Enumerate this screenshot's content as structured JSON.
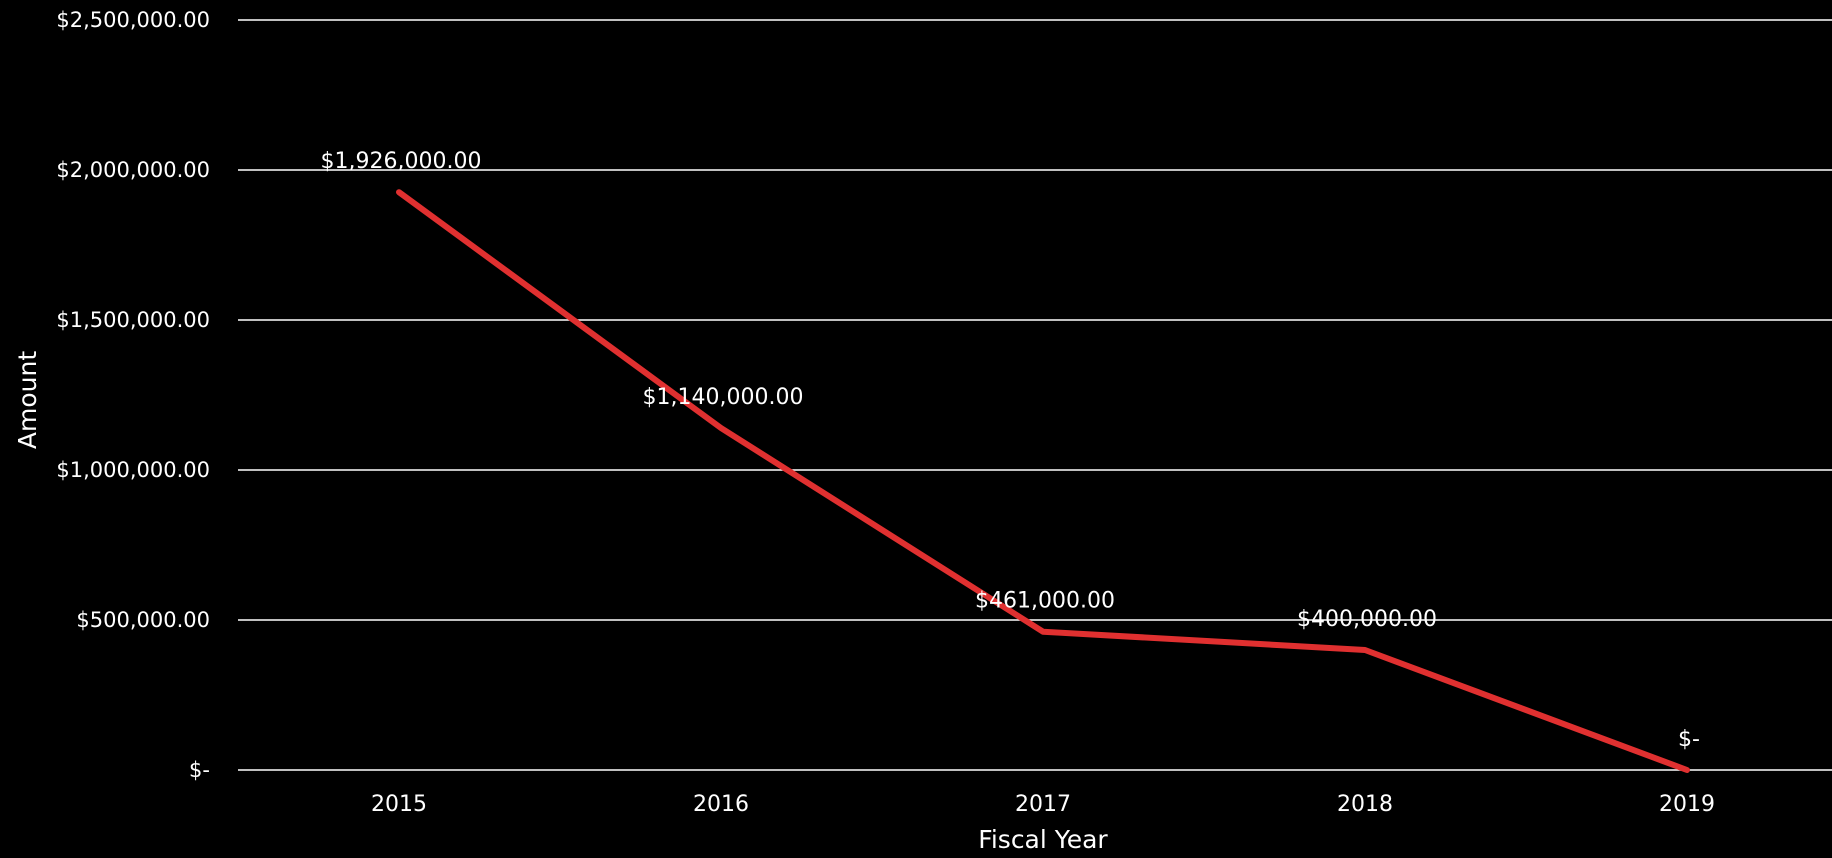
{
  "chart_data": {
    "type": "line",
    "x": [
      "2015",
      "2016",
      "2017",
      "2018",
      "2019"
    ],
    "series": [
      {
        "values": [
          1926000,
          1140000,
          461000,
          400000,
          0
        ],
        "labels": [
          "$1,926,000.00",
          "$1,140,000.00",
          "$461,000.00",
          "$400,000.00",
          "$-"
        ]
      }
    ],
    "xlabel": "Fiscal Year",
    "ylabel": "Amount",
    "ylim": [
      0,
      2500000
    ],
    "y_ticks": [
      {
        "value": 0,
        "label": "$-"
      },
      {
        "value": 500000,
        "label": "$500,000.00"
      },
      {
        "value": 1000000,
        "label": "$1,000,000.00"
      },
      {
        "value": 1500000,
        "label": "$1,500,000.00"
      },
      {
        "value": 2000000,
        "label": "$2,000,000.00"
      },
      {
        "value": 2500000,
        "label": "$2,500,000.00"
      }
    ],
    "grid": true,
    "legend": "none",
    "colors": {
      "background": "#000000",
      "line": "#e03030",
      "text": "#ffffff",
      "grid": "#ffffff"
    }
  }
}
